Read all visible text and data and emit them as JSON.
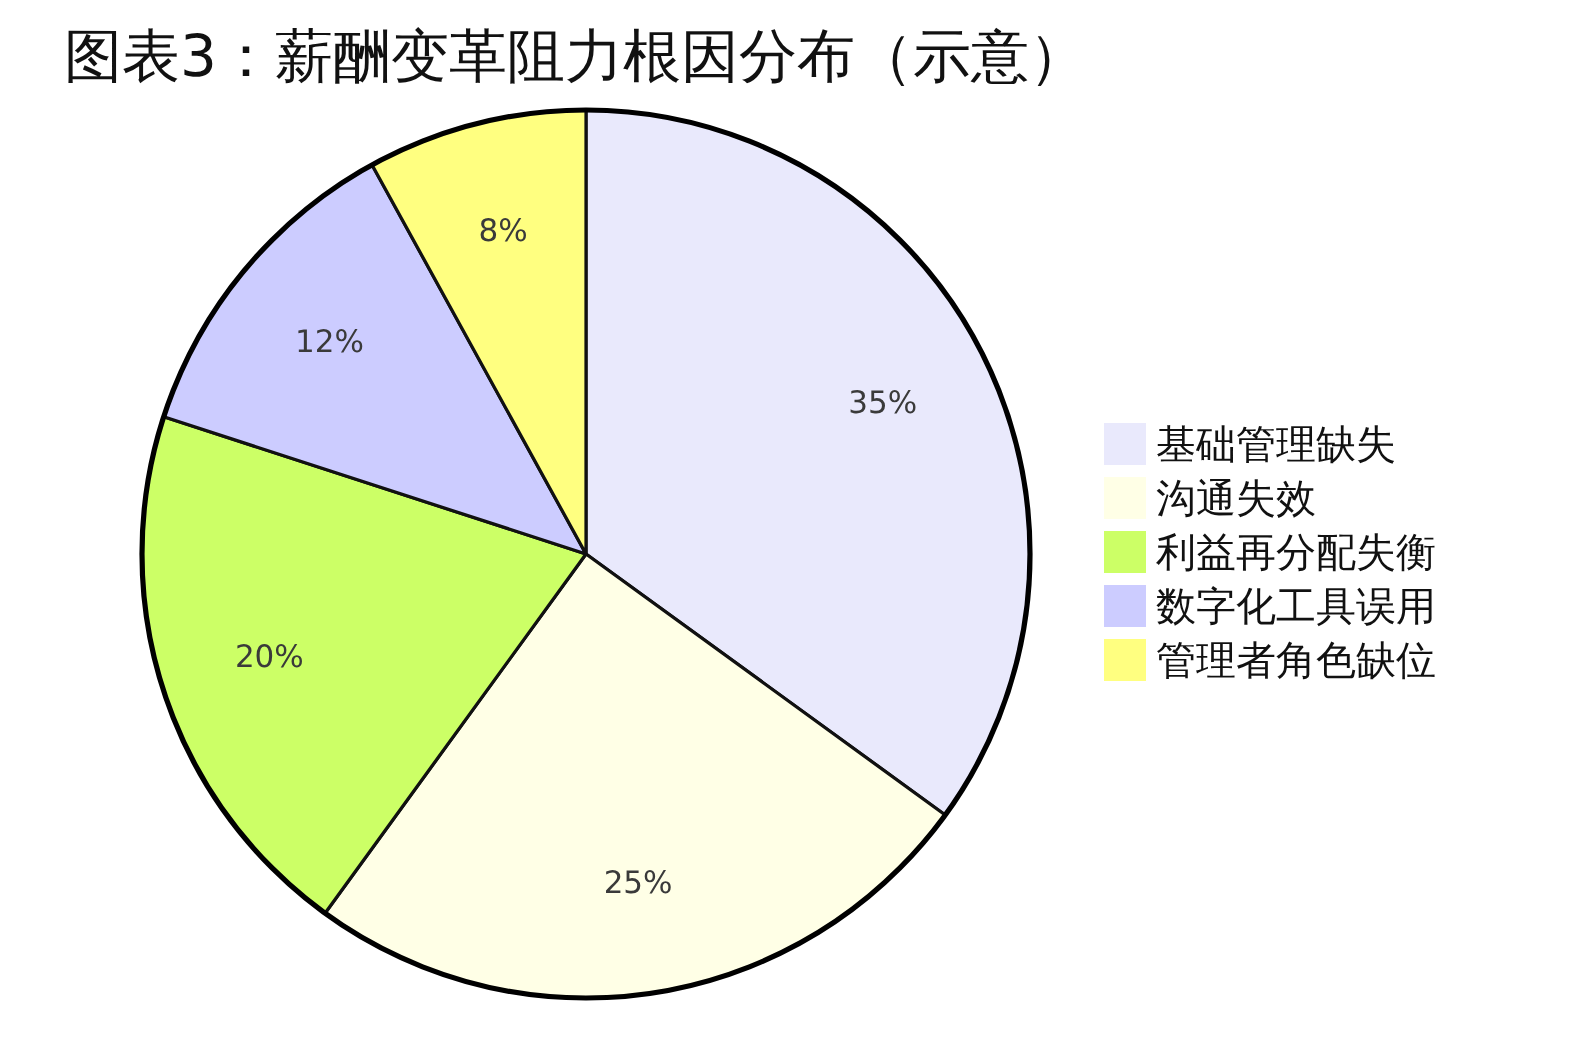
{
  "chart_data": {
    "type": "pie",
    "title": "图表3：薪酬变革阻力根因分布（示意）",
    "categories": [
      "基础管理缺失",
      "沟通失效",
      "利益再分配失衡",
      "数字化工具误用",
      "管理者角色缺位"
    ],
    "values": [
      35,
      25,
      20,
      12,
      8
    ],
    "value_labels": [
      "35%",
      "25%",
      "20%",
      "12%",
      "8%"
    ],
    "colors": [
      "#e9e9fc",
      "#ffffe6",
      "#ccff66",
      "#ccccff",
      "#ffff80"
    ],
    "legend": "right"
  }
}
